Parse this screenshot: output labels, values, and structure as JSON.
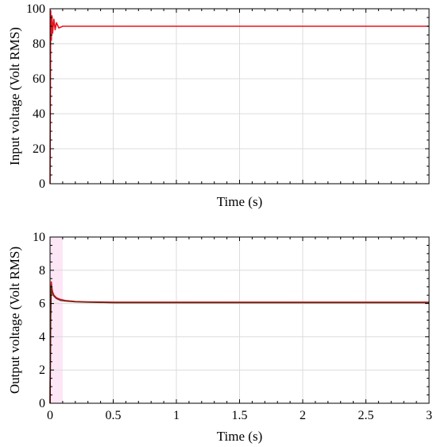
{
  "chart_data": [
    {
      "type": "line",
      "xlabel": "Time (s)",
      "ylabel": "Input voltage (Volt RMS)",
      "xlim": [
        0,
        3
      ],
      "ylim": [
        0,
        100
      ],
      "yticks": [
        "0",
        "20",
        "40",
        "60",
        "80",
        "100"
      ],
      "xtick_labels_shown": false,
      "grid": true,
      "series": [
        {
          "color": "#e8141e",
          "x": [
            0,
            0.005,
            0.01,
            0.015,
            0.02,
            0.03,
            0.04,
            0.05,
            0.07,
            0.1,
            0.2,
            0.5,
            1,
            1.5,
            2,
            2.5,
            3
          ],
          "y": [
            0,
            99,
            82,
            96,
            86,
            94,
            88,
            92,
            89,
            90,
            90,
            90,
            90,
            90,
            90,
            90,
            90
          ]
        }
      ]
    },
    {
      "type": "line",
      "xlabel": "Time (s)",
      "ylabel": "Output voltage (Volt RMS)",
      "xlim": [
        0,
        3
      ],
      "ylim": [
        0,
        10
      ],
      "xticks": [
        "0",
        "0.5",
        "1",
        "1.5",
        "2",
        "2.5",
        "3"
      ],
      "yticks": [
        "0",
        "2",
        "4",
        "6",
        "8",
        "10"
      ],
      "grid": true,
      "highlight": {
        "x": [
          0,
          0.1
        ],
        "color": "#fde6f6"
      },
      "series": [
        {
          "color": "#e8141e",
          "x": [
            0,
            0.005,
            0.01,
            0.015,
            0.02,
            0.03,
            0.05,
            0.08,
            0.12,
            0.2,
            0.3,
            0.5,
            1,
            1.5,
            2,
            2.5,
            3
          ],
          "y": [
            0,
            6.0,
            7.3,
            6.9,
            6.7,
            6.5,
            6.35,
            6.25,
            6.18,
            6.12,
            6.1,
            6.08,
            6.08,
            6.08,
            6.08,
            6.08,
            6.08
          ]
        },
        {
          "color": "#6b2a18",
          "x": [
            0,
            0.005,
            0.01,
            0.015,
            0.02,
            0.03,
            0.05,
            0.08,
            0.12,
            0.2,
            0.3,
            0.5,
            1,
            1.5,
            2,
            2.5,
            3
          ],
          "y": [
            0,
            5.2,
            7.1,
            6.7,
            6.6,
            6.45,
            6.3,
            6.2,
            6.15,
            6.1,
            6.08,
            6.05,
            6.05,
            6.05,
            6.05,
            6.05,
            6.05
          ]
        }
      ]
    }
  ]
}
